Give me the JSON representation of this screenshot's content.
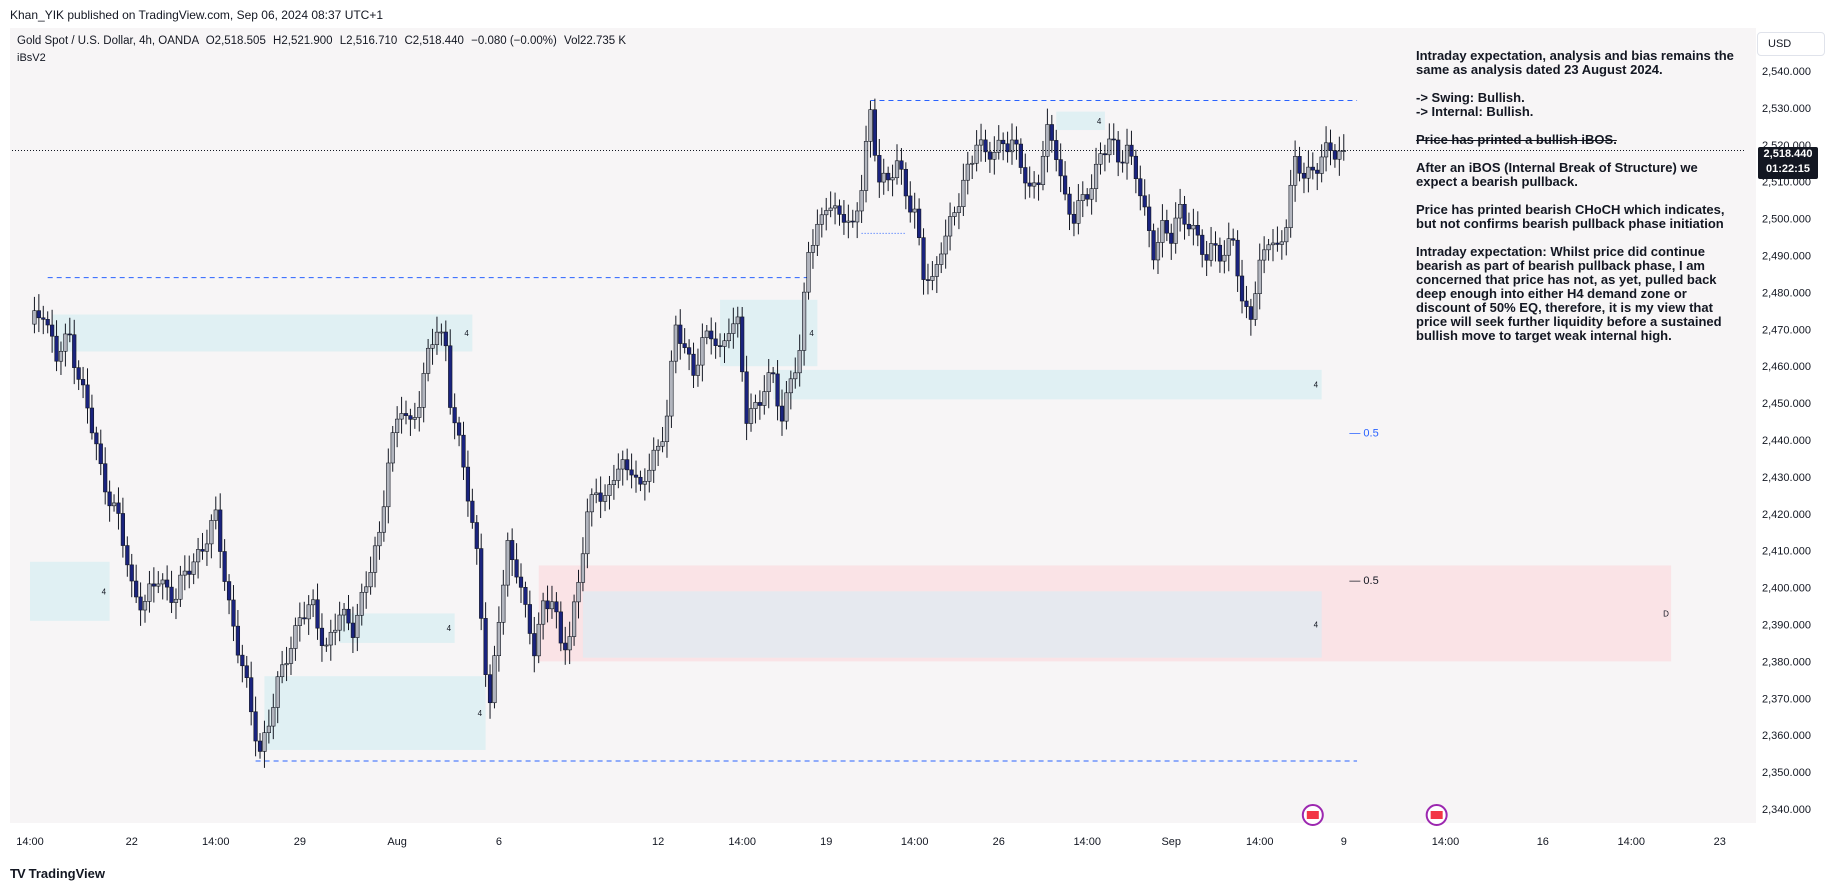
{
  "header": {
    "published_by": "Khan_YIK published on TradingView.com, Sep 06, 2024 08:37 UTC+1"
  },
  "legend": {
    "symbol": "Gold Spot / U.S. Dollar, 4h, OANDA",
    "open": "O2,518.505",
    "high": "H2,521.900",
    "low": "L2,516.710",
    "close": "C2,518.440",
    "change": "−0.080 (−0.00%)",
    "volume": "Vol22.735 K",
    "indicator": "iBsV2"
  },
  "currency_button": "USD",
  "last_price": {
    "value": "2,518.440",
    "countdown": "01:22:15"
  },
  "note": {
    "p1": "Intraday expectation, analysis and bias remains the same as analysis dated 23 August 2024.",
    "p2": "-> Swing:  Bullish.\n-> Internal:  Bullish.",
    "p3": "Price has printed a bullish iBOS.",
    "p4": "After an iBOS (Internal Break of Structure) we expect a bearish pullback.",
    "p5": "Price has printed bearish CHoCH which indicates, but not confirms bearish pullback phase initiation",
    "p6": "Intraday expectation: Whilst price did continue bearish as part of bearish pullback phase, I am concerned that price has not, as yet, pulled back deep enough into either H4 demand zone or discount of 50% EQ, therefore, it is my view that price will seek further liquidity before a sustained bullish move to target weak internal high."
  },
  "footer": {
    "brand": "TradingView",
    "logo_mark": "TV"
  },
  "colors": {
    "bull_body": "#b2b5be",
    "bear_body": "#1a237e",
    "wick": "#131722",
    "demand_zone": "#e0f0f3",
    "premium_zone": "#fae3e6",
    "discount_zone": "#e6e9ef",
    "dashed_line": "#2962ff"
  },
  "chart_data": {
    "type": "candlestick",
    "title": "Gold Spot / U.S. Dollar, 4h, OANDA",
    "ylim": [
      2335,
      2545
    ],
    "y_ticks": [
      "2,340.000",
      "2,350.000",
      "2,360.000",
      "2,370.000",
      "2,380.000",
      "2,390.000",
      "2,400.000",
      "2,410.000",
      "2,420.000",
      "2,430.000",
      "2,440.000",
      "2,450.000",
      "2,460.000",
      "2,470.000",
      "2,480.000",
      "2,490.000",
      "2,500.000",
      "2,510.000",
      "2,520.000",
      "2,530.000",
      "2,540.000"
    ],
    "y_tick_values": [
      2340,
      2350,
      2360,
      2370,
      2380,
      2390,
      2400,
      2410,
      2420,
      2430,
      2440,
      2450,
      2460,
      2470,
      2480,
      2490,
      2500,
      2510,
      2520,
      2530,
      2540
    ],
    "x_labels": [
      "14:00",
      "22",
      "14:00",
      "29",
      "Aug",
      "6",
      "12",
      "14:00",
      "19",
      "14:00",
      "26",
      "14:00",
      "Sep",
      "14:00",
      "9",
      "14:00",
      "16",
      "14:00",
      "23"
    ],
    "x_label_index": [
      0,
      23,
      42,
      61,
      83,
      106,
      142,
      161,
      180,
      200,
      219,
      239,
      258,
      278,
      297,
      320,
      342,
      362,
      382
    ],
    "bar_count": 392,
    "candles_index_range": [
      0,
      297
    ],
    "anchors": [
      [
        0,
        2470
      ],
      [
        3,
        2476
      ],
      [
        6,
        2462
      ],
      [
        9,
        2468
      ],
      [
        13,
        2448
      ],
      [
        16,
        2432
      ],
      [
        20,
        2418
      ],
      [
        23,
        2400
      ],
      [
        26,
        2396
      ],
      [
        29,
        2402
      ],
      [
        33,
        2398
      ],
      [
        36,
        2405
      ],
      [
        40,
        2414
      ],
      [
        42,
        2418
      ],
      [
        45,
        2396
      ],
      [
        48,
        2378
      ],
      [
        50,
        2366
      ],
      [
        52,
        2356
      ],
      [
        55,
        2368
      ],
      [
        58,
        2382
      ],
      [
        61,
        2392
      ],
      [
        64,
        2394
      ],
      [
        67,
        2384
      ],
      [
        70,
        2392
      ],
      [
        73,
        2390
      ],
      [
        76,
        2400
      ],
      [
        79,
        2414
      ],
      [
        81,
        2436
      ],
      [
        84,
        2448
      ],
      [
        86,
        2444
      ],
      [
        88,
        2452
      ],
      [
        90,
        2462
      ],
      [
        92,
        2470
      ],
      [
        94,
        2466
      ],
      [
        95,
        2452
      ],
      [
        97,
        2438
      ],
      [
        99,
        2425
      ],
      [
        101,
        2410
      ],
      [
        103,
        2378
      ],
      [
        104,
        2366
      ],
      [
        106,
        2392
      ],
      [
        108,
        2412
      ],
      [
        110,
        2405
      ],
      [
        112,
        2392
      ],
      [
        114,
        2384
      ],
      [
        116,
        2396
      ],
      [
        118,
        2396
      ],
      [
        120,
        2384
      ],
      [
        122,
        2388
      ],
      [
        124,
        2402
      ],
      [
        126,
        2418
      ],
      [
        128,
        2428
      ],
      [
        130,
        2424
      ],
      [
        132,
        2430
      ],
      [
        134,
        2432
      ],
      [
        136,
        2434
      ],
      [
        138,
        2426
      ],
      [
        140,
        2432
      ],
      [
        142,
        2438
      ],
      [
        144,
        2448
      ],
      [
        146,
        2470
      ],
      [
        148,
        2464
      ],
      [
        150,
        2460
      ],
      [
        152,
        2466
      ],
      [
        154,
        2468
      ],
      [
        156,
        2464
      ],
      [
        158,
        2472
      ],
      [
        160,
        2470
      ],
      [
        162,
        2446
      ],
      [
        164,
        2450
      ],
      [
        166,
        2454
      ],
      [
        168,
        2456
      ],
      [
        170,
        2446
      ],
      [
        172,
        2458
      ],
      [
        174,
        2462
      ],
      [
        176,
        2492
      ],
      [
        178,
        2498
      ],
      [
        180,
        2504
      ],
      [
        182,
        2500
      ],
      [
        184,
        2502
      ],
      [
        186,
        2498
      ],
      [
        188,
        2508
      ],
      [
        190,
        2528
      ],
      [
        192,
        2512
      ],
      [
        194,
        2510
      ],
      [
        196,
        2514
      ],
      [
        198,
        2508
      ],
      [
        200,
        2502
      ],
      [
        202,
        2484
      ],
      [
        204,
        2482
      ],
      [
        206,
        2494
      ],
      [
        208,
        2498
      ],
      [
        210,
        2504
      ],
      [
        212,
        2514
      ],
      [
        214,
        2522
      ],
      [
        216,
        2516
      ],
      [
        218,
        2518
      ],
      [
        220,
        2522
      ],
      [
        222,
        2520
      ],
      [
        224,
        2514
      ],
      [
        226,
        2508
      ],
      [
        228,
        2512
      ],
      [
        230,
        2522
      ],
      [
        232,
        2518
      ],
      [
        234,
        2506
      ],
      [
        236,
        2500
      ],
      [
        238,
        2504
      ],
      [
        240,
        2510
      ],
      [
        242,
        2518
      ],
      [
        244,
        2520
      ],
      [
        246,
        2516
      ],
      [
        248,
        2520
      ],
      [
        250,
        2512
      ],
      [
        252,
        2500
      ],
      [
        254,
        2492
      ],
      [
        256,
        2498
      ],
      [
        258,
        2494
      ],
      [
        260,
        2502
      ],
      [
        262,
        2500
      ],
      [
        264,
        2494
      ],
      [
        266,
        2488
      ],
      [
        268,
        2494
      ],
      [
        270,
        2490
      ],
      [
        272,
        2494
      ],
      [
        274,
        2476
      ],
      [
        276,
        2476
      ],
      [
        278,
        2486
      ],
      [
        280,
        2494
      ],
      [
        282,
        2492
      ],
      [
        284,
        2500
      ],
      [
        286,
        2514
      ],
      [
        288,
        2512
      ],
      [
        290,
        2514
      ],
      [
        292,
        2516
      ],
      [
        294,
        2518
      ],
      [
        297,
        2518.44
      ]
    ],
    "zones": [
      {
        "kind": "demand",
        "x0": 5,
        "x1": 100,
        "y0": 2464,
        "y1": 2474,
        "label": "4"
      },
      {
        "kind": "demand",
        "x0": 0,
        "x1": 18,
        "y0": 2391,
        "y1": 2407,
        "label": "4"
      },
      {
        "kind": "demand",
        "x0": 70,
        "x1": 96,
        "y0": 2385,
        "y1": 2393,
        "label": "4"
      },
      {
        "kind": "demand",
        "x0": 53,
        "x1": 103,
        "y0": 2356,
        "y1": 2376,
        "label": "4"
      },
      {
        "kind": "demand",
        "x0": 156,
        "x1": 178,
        "y0": 2460,
        "y1": 2478,
        "label": "4"
      },
      {
        "kind": "demand",
        "x0": 168,
        "x1": 292,
        "y0": 2451,
        "y1": 2459,
        "label": "4"
      },
      {
        "kind": "demand",
        "x0": 232,
        "x1": 243,
        "y0": 2524,
        "y1": 2529,
        "label": "4"
      },
      {
        "kind": "premium",
        "x0": 115,
        "x1": 371,
        "y0": 2380,
        "y1": 2406,
        "label": "D"
      },
      {
        "kind": "discount",
        "x0": 125,
        "x1": 292,
        "y0": 2381,
        "y1": 2399,
        "label": "4"
      }
    ],
    "lines": [
      {
        "from": 4,
        "to": 176,
        "y": 2484,
        "style": "dashed"
      },
      {
        "from": 190,
        "to": 300,
        "y": 2532,
        "style": "dashed"
      },
      {
        "from": 51,
        "to": 300,
        "y": 2353,
        "style": "dashed"
      },
      {
        "from": 188,
        "to": 198,
        "y": 2496,
        "style": "dotted"
      }
    ],
    "eq_labels": [
      {
        "x": 296,
        "y": 2442,
        "text": "0.5"
      },
      {
        "x": 296,
        "y": 2402,
        "text": "0.5"
      }
    ],
    "event_icon_indices": [
      290,
      318
    ]
  }
}
